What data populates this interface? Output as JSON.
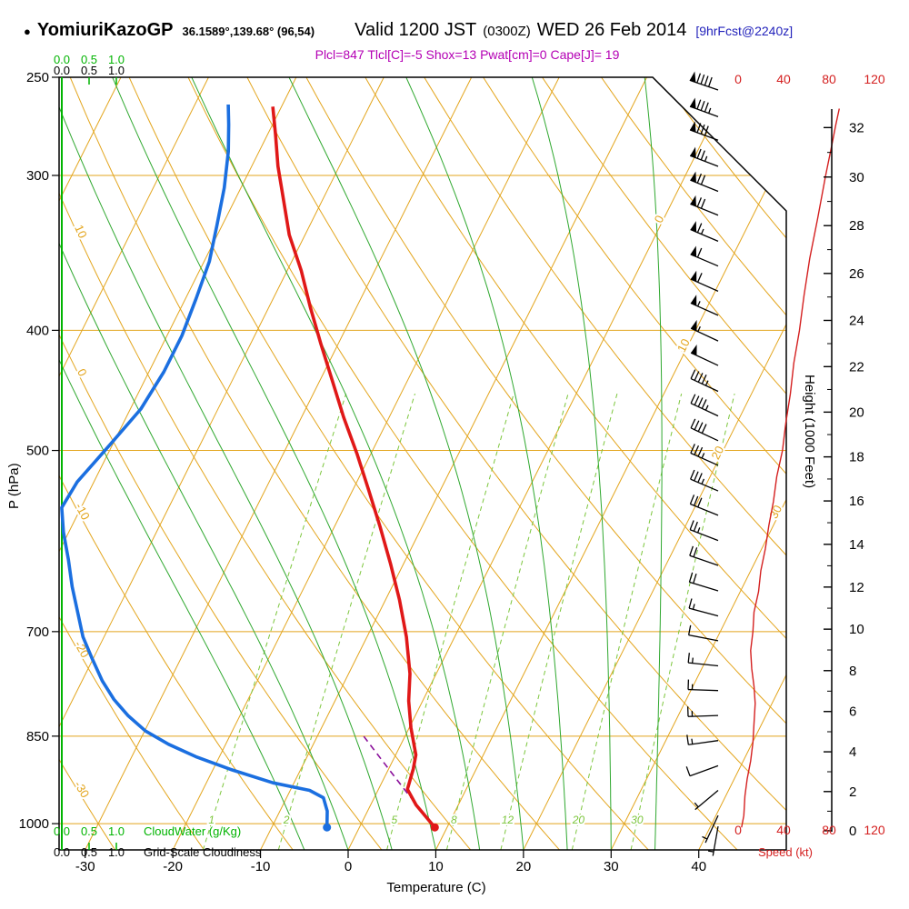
{
  "header": {
    "bullet": "●",
    "station": "YomiuriKazoGP",
    "coords": "36.1589°,139.68° (96,54)",
    "valid": "Valid 1200 JST",
    "zulu": "(0300Z)",
    "date": "WED 26 Feb 2014",
    "fcst": "[9hrFcst@2240z]"
  },
  "params_line": "Plcl=847 Tlcl[C]=-5 Shox=13 Pwat[cm]=0 Cape[J]= 19",
  "colors": {
    "temperature": "#e01818",
    "dewpoint": "#1b6fe0",
    "parcel": "#8a0f9a",
    "grid_orange": "#e3a51d",
    "moist_green": "#2fa82f",
    "mixing_green": "#7cc63c",
    "cloud_green": "#00b400",
    "speed_red": "#d42020",
    "params_magenta": "#b400b4",
    "fcst_tag_blue": "#2222bb",
    "axis_black": "#000000"
  },
  "chart_data": {
    "type": "line",
    "kind": "skew-t log-p atmospheric sounding",
    "pressure_axis": {
      "label": "P (hPa)",
      "ticks": [
        250,
        300,
        400,
        500,
        700,
        850,
        1000
      ],
      "top_hpa": 250,
      "bottom_hpa": 1050
    },
    "temperature_axis": {
      "label": "Temperature (C)",
      "ticks": [
        -30,
        -20,
        -10,
        0,
        10,
        20,
        30,
        40
      ]
    },
    "height_axis": {
      "label": "Height (1000 Feet)",
      "ticks": [
        0,
        2,
        4,
        6,
        8,
        10,
        12,
        14,
        16,
        18,
        20,
        22,
        24,
        26,
        28,
        30,
        32
      ]
    },
    "speed_axis": {
      "label": "Speed (kt)",
      "ticks": [
        0,
        40,
        80,
        120
      ]
    },
    "cloudwater_axis": {
      "label": "CloudWater (g/Kg)",
      "tick_labels": [
        "0.0",
        "0.5",
        "1.0"
      ]
    },
    "cloudiness_axis": {
      "label": "Grid-Scale Cloudiness",
      "tick_labels": [
        "0.0",
        "0.5",
        "1.0"
      ]
    },
    "grid": {
      "isotherms_c": {
        "from": -100,
        "to": 40,
        "step": 10
      },
      "dry_adiabats_theta_c": {
        "from": -40,
        "to": 120,
        "step": 10
      },
      "dry_adiabat_labels_c": [
        10,
        0,
        -10,
        -20,
        -30
      ],
      "isotherm_inline_labels_c": [
        0,
        10,
        20,
        30
      ],
      "moist_adiabats_c": [
        -5,
        0,
        5,
        10,
        15,
        20,
        25,
        30,
        35
      ],
      "mixing_ratio_g_kg": [
        1,
        2,
        5,
        8,
        12,
        20,
        30
      ]
    },
    "series": {
      "temperature_c": [
        [
          1007,
          8.6
        ],
        [
          966,
          5.2
        ],
        [
          938,
          3.3
        ],
        [
          903,
          2.8
        ],
        [
          880,
          2.3
        ],
        [
          837,
          0.2
        ],
        [
          796,
          -1.6
        ],
        [
          757,
          -3.0
        ],
        [
          707,
          -5.5
        ],
        [
          660,
          -8.4
        ],
        [
          617,
          -11.5
        ],
        [
          576,
          -14.8
        ],
        [
          538,
          -18.2
        ],
        [
          503,
          -21.6
        ],
        [
          470,
          -25.2
        ],
        [
          439,
          -28.6
        ],
        [
          410,
          -32.0
        ],
        [
          383,
          -35.3
        ],
        [
          358,
          -38.4
        ],
        [
          335,
          -41.8
        ],
        [
          312,
          -44.7
        ],
        [
          295,
          -47.0
        ],
        [
          278,
          -49.1
        ],
        [
          264,
          -51.0
        ]
      ],
      "dewpoint_c": [
        [
          1007,
          -3.7
        ],
        [
          977,
          -4.6
        ],
        [
          953,
          -5.8
        ],
        [
          940,
          -7.8
        ],
        [
          927,
          -12.4
        ],
        [
          905,
          -17.8
        ],
        [
          883,
          -22.7
        ],
        [
          863,
          -26.5
        ],
        [
          842,
          -29.9
        ],
        [
          818,
          -32.8
        ],
        [
          794,
          -35.3
        ],
        [
          767,
          -37.7
        ],
        [
          735,
          -40.2
        ],
        [
          707,
          -42.4
        ],
        [
          674,
          -44.5
        ],
        [
          644,
          -46.5
        ],
        [
          612,
          -48.5
        ],
        [
          582,
          -50.6
        ],
        [
          556,
          -52.2
        ],
        [
          530,
          -51.9
        ],
        [
          495,
          -50.3
        ],
        [
          463,
          -48.8
        ],
        [
          432,
          -48.3
        ],
        [
          404,
          -48.3
        ],
        [
          377,
          -48.8
        ],
        [
          352,
          -49.4
        ],
        [
          329,
          -50.6
        ],
        [
          307,
          -51.9
        ],
        [
          287,
          -53.5
        ],
        [
          273,
          -55.0
        ],
        [
          263,
          -56.2
        ]
      ],
      "parcel_c": [
        [
          1007,
          8.6
        ],
        [
          940,
          3.1
        ],
        [
          885,
          -1.6
        ],
        [
          847,
          -5.0
        ]
      ],
      "wind_speed_kt": [
        [
          1007,
          3
        ],
        [
          985,
          5
        ],
        [
          950,
          6
        ],
        [
          920,
          8
        ],
        [
          890,
          11
        ],
        [
          860,
          13
        ],
        [
          830,
          14
        ],
        [
          800,
          15
        ],
        [
          775,
          14
        ],
        [
          750,
          12
        ],
        [
          725,
          11
        ],
        [
          700,
          13
        ],
        [
          675,
          14
        ],
        [
          650,
          18
        ],
        [
          625,
          20
        ],
        [
          600,
          24
        ],
        [
          575,
          27
        ],
        [
          550,
          31
        ],
        [
          525,
          34
        ],
        [
          500,
          39
        ],
        [
          475,
          42
        ],
        [
          450,
          46
        ],
        [
          425,
          49
        ],
        [
          400,
          54
        ],
        [
          375,
          58
        ],
        [
          350,
          63
        ],
        [
          325,
          70
        ],
        [
          300,
          77
        ],
        [
          285,
          82
        ],
        [
          273,
          86
        ],
        [
          265,
          89
        ]
      ],
      "wind_barbs_p_spd_dir": [
        [
          1005,
          4,
          190
        ],
        [
          985,
          5,
          205
        ],
        [
          940,
          7,
          230
        ],
        [
          898,
          10,
          250
        ],
        [
          857,
          13,
          262
        ],
        [
          818,
          14,
          268
        ],
        [
          781,
          15,
          272
        ],
        [
          746,
          13,
          276
        ],
        [
          712,
          12,
          281
        ],
        [
          680,
          14,
          285
        ],
        [
          649,
          18,
          287
        ],
        [
          619,
          22,
          289
        ],
        [
          591,
          25,
          291
        ],
        [
          564,
          30,
          292
        ],
        [
          539,
          33,
          293
        ],
        [
          514,
          37,
          294
        ],
        [
          491,
          41,
          295
        ],
        [
          469,
          44,
          295
        ],
        [
          448,
          47,
          295
        ],
        [
          427,
          50,
          295
        ],
        [
          408,
          53,
          295
        ],
        [
          389,
          56,
          294
        ],
        [
          372,
          59,
          294
        ],
        [
          355,
          62,
          293
        ],
        [
          339,
          65,
          293
        ],
        [
          323,
          69,
          292
        ],
        [
          309,
          72,
          292
        ],
        [
          295,
          76,
          291
        ],
        [
          281,
          81,
          290
        ],
        [
          269,
          86,
          290
        ],
        [
          256,
          90,
          289
        ]
      ]
    }
  }
}
